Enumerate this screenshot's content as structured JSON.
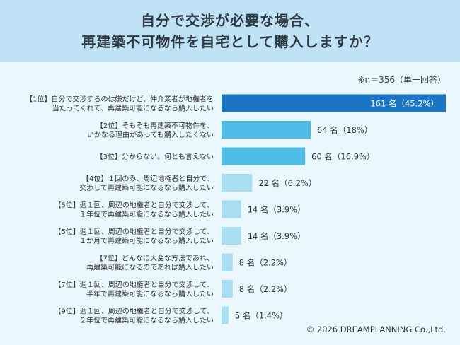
{
  "header": {
    "title_line1": "自分で交渉が必要な場合、",
    "title_line2": "再建築不可物件を自宅として購入しますか？"
  },
  "note": "※n＝356（単一回答）",
  "copyright": "© 2026 DREAMPLANNING Co.,Ltd.",
  "colors": {
    "header_bg": "#bfe3f5",
    "page_bg": "#eaf7fd",
    "bar_top": "#1a76c2",
    "bar_mid": "#4dbde8",
    "bar_low": "#a8ddf2"
  },
  "chart_data": {
    "type": "bar",
    "orientation": "horizontal",
    "categories": [
      [
        "【1位】自分で交渉するのは嫌だけど、仲介業者が地権者を",
        "当たってくれて、再建築可能になるなら購入したい"
      ],
      [
        "【2位】そもそも再建築不可物件を、",
        "いかなる理由があっても購入したくない"
      ],
      [
        "【3位】分からない。何とも言えない"
      ],
      [
        "【4位】１回のみ、周辺地権者と自分で、",
        "交渉して再建築可能になるなら購入したい"
      ],
      [
        "【5位】週１回、周辺の地権者と自分で交渉して、",
        "１年位で再建築可能になるなら購入したい"
      ],
      [
        "【5位】週１回、周辺の地権者と自分で交渉して、",
        "１か月で再建築可能になるなら購入したい"
      ],
      [
        "【7位】どんなに大変な方法であれ、",
        "再建築可能になるのであれば購入したい"
      ],
      [
        "【7位】週１回、周辺の地権者と自分で交渉して、",
        "半年で再建築可能になるなら購入したい"
      ],
      [
        "【9位】週１回、周辺の地権者と自分で交渉して、",
        "２年位で再建築可能になるなら購入したい"
      ]
    ],
    "values": [
      161,
      64,
      60,
      22,
      14,
      14,
      8,
      8,
      5
    ],
    "labels": [
      "161 名（45.2%）",
      "64 名（18%）",
      "60 名（16.9%）",
      "22 名（6.2%）",
      "14 名（3.9%）",
      "14 名（3.9%）",
      "8 名（2.2%）",
      "8 名（2.2%）",
      "5 名（1.4%）"
    ],
    "percent": [
      45.2,
      18,
      16.9,
      6.2,
      3.9,
      3.9,
      2.2,
      2.2,
      1.4
    ],
    "xlim": [
      0,
      161
    ],
    "grid": false
  }
}
